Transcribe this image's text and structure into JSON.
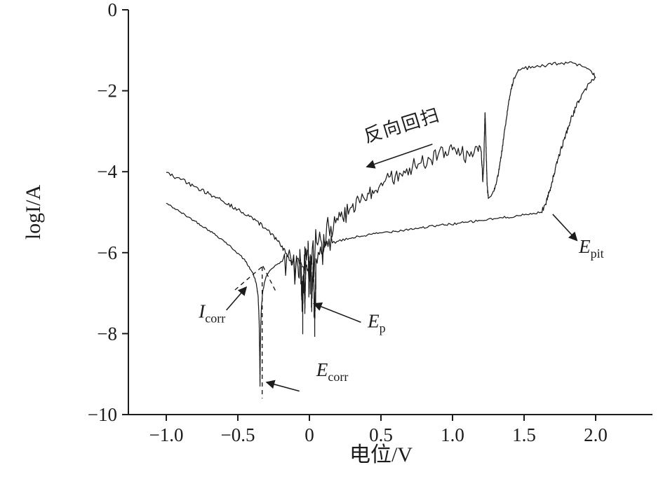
{
  "figure": {
    "background": "#ffffff",
    "ink_color": "#1c1c1c"
  },
  "chart_data": {
    "type": "line",
    "title": "",
    "xlabel": "电位/V",
    "ylabel": "logI/A",
    "xlim": [
      -1.2647,
      2.3971
    ],
    "ylim": [
      -10,
      0
    ],
    "grid": false,
    "legend": null,
    "x_ticks": [
      {
        "v": -1.0,
        "label": "−1.0"
      },
      {
        "v": -0.5,
        "label": "−0.5"
      },
      {
        "v": 0,
        "label": "0"
      },
      {
        "v": 0.5,
        "label": "0.5"
      },
      {
        "v": 1.0,
        "label": "1.0"
      },
      {
        "v": 1.5,
        "label": "1.5"
      },
      {
        "v": 2.0,
        "label": "2.0"
      }
    ],
    "y_ticks": [
      {
        "v": 0,
        "label": "0"
      },
      {
        "v": -2,
        "label": "−2"
      },
      {
        "v": -4,
        "label": "−4"
      },
      {
        "v": -6,
        "label": "−6"
      },
      {
        "v": -8,
        "label": "−8"
      },
      {
        "v": -10,
        "label": "−10"
      }
    ],
    "series": [
      {
        "name": "forward-scan-curve",
        "segments": [
          {
            "noise": 0.025,
            "points": [
              [
                -1.0,
                -4.78
              ],
              [
                -0.9,
                -5.0
              ],
              [
                -0.8,
                -5.22
              ],
              [
                -0.7,
                -5.45
              ],
              [
                -0.6,
                -5.7
              ],
              [
                -0.52,
                -5.95
              ],
              [
                -0.46,
                -6.15
              ],
              [
                -0.42,
                -6.35
              ],
              [
                -0.39,
                -6.55
              ],
              [
                -0.37,
                -6.78
              ],
              [
                -0.358,
                -7.1
              ],
              [
                -0.351,
                -7.7
              ],
              [
                -0.347,
                -8.6
              ],
              [
                -0.345,
                -9.3
              ]
            ]
          },
          {
            "noise": 0.02,
            "points": [
              [
                -0.345,
                -9.3
              ],
              [
                -0.343,
                -8.4
              ],
              [
                -0.34,
                -7.8
              ],
              [
                -0.335,
                -7.35
              ],
              [
                -0.327,
                -7.0
              ],
              [
                -0.315,
                -6.75
              ],
              [
                -0.3,
                -6.58
              ],
              [
                -0.27,
                -6.42
              ],
              [
                -0.23,
                -6.3
              ],
              [
                -0.19,
                -6.22
              ]
            ]
          },
          {
            "noise": 0.2,
            "spikes": {
              "p": 0.05,
              "mag": 0.8
            },
            "points": [
              [
                -0.19,
                -6.22
              ],
              [
                -0.15,
                -6.1
              ],
              [
                -0.11,
                -6.15
              ],
              [
                -0.07,
                -6.28
              ],
              [
                -0.04,
                -6.35
              ],
              [
                -0.031,
                -7.3
              ],
              [
                -0.025,
                -6.3
              ],
              [
                -0.012,
                -6.45
              ],
              [
                0.0,
                -6.55
              ],
              [
                0.01,
                -6.3
              ],
              [
                0.018,
                -7.0
              ],
              [
                0.028,
                -6.2
              ],
              [
                0.037,
                -7.75
              ],
              [
                0.046,
                -6.15
              ],
              [
                0.07,
                -6.05
              ],
              [
                0.1,
                -5.95
              ],
              [
                0.13,
                -5.85
              ],
              [
                0.16,
                -5.76
              ]
            ]
          },
          {
            "noise": 0.03,
            "points": [
              [
                0.16,
                -5.76
              ],
              [
                0.3,
                -5.63
              ],
              [
                0.5,
                -5.51
              ],
              [
                0.7,
                -5.42
              ],
              [
                0.9,
                -5.33
              ],
              [
                1.1,
                -5.25
              ],
              [
                1.3,
                -5.16
              ],
              [
                1.5,
                -5.07
              ],
              [
                1.62,
                -5.0
              ]
            ]
          },
          {
            "noise": 0.06,
            "points": [
              [
                1.62,
                -5.0
              ],
              [
                1.65,
                -4.8
              ],
              [
                1.68,
                -4.45
              ],
              [
                1.71,
                -4.05
              ],
              [
                1.74,
                -3.65
              ],
              [
                1.78,
                -3.2
              ],
              [
                1.82,
                -2.78
              ],
              [
                1.86,
                -2.42
              ],
              [
                1.9,
                -2.12
              ],
              [
                1.94,
                -1.9
              ],
              [
                1.98,
                -1.73
              ],
              [
                2.0,
                -1.66
              ]
            ]
          }
        ]
      },
      {
        "name": "reverse-scan-curve",
        "segments": [
          {
            "noise": 0.045,
            "points": [
              [
                2.0,
                -1.66
              ],
              [
                1.97,
                -1.52
              ],
              [
                1.93,
                -1.42
              ],
              [
                1.88,
                -1.35
              ],
              [
                1.81,
                -1.31
              ],
              [
                1.74,
                -1.33
              ],
              [
                1.66,
                -1.37
              ],
              [
                1.58,
                -1.41
              ],
              [
                1.5,
                -1.45
              ],
              [
                1.46,
                -1.48
              ]
            ]
          },
          {
            "noise": 0.05,
            "points": [
              [
                1.46,
                -1.48
              ],
              [
                1.43,
                -1.68
              ],
              [
                1.41,
                -1.95
              ],
              [
                1.39,
                -2.35
              ],
              [
                1.37,
                -2.85
              ],
              [
                1.35,
                -3.35
              ],
              [
                1.33,
                -3.85
              ],
              [
                1.31,
                -4.22
              ],
              [
                1.29,
                -4.48
              ],
              [
                1.27,
                -4.6
              ],
              [
                1.25,
                -4.66
              ]
            ]
          },
          {
            "noise": 0.07,
            "points": [
              [
                1.25,
                -4.66
              ],
              [
                1.242,
                -4.35
              ],
              [
                1.235,
                -3.5
              ],
              [
                1.23,
                -2.8
              ],
              [
                1.227,
                -2.55
              ],
              [
                1.223,
                -3.1
              ],
              [
                1.218,
                -3.9
              ],
              [
                1.212,
                -4.25
              ],
              [
                1.206,
                -3.85
              ],
              [
                1.2,
                -3.5
              ],
              [
                1.19,
                -3.38
              ],
              [
                1.18,
                -3.5
              ]
            ]
          },
          {
            "noise": 0.2,
            "spikes": {
              "p": 0.03,
              "mag": 0.45
            },
            "points": [
              [
                1.18,
                -3.5
              ],
              [
                1.12,
                -3.62
              ],
              [
                1.06,
                -3.55
              ],
              [
                1.0,
                -3.46
              ],
              [
                0.95,
                -3.5
              ],
              [
                0.9,
                -3.58
              ],
              [
                0.84,
                -3.68
              ],
              [
                0.78,
                -3.78
              ],
              [
                0.72,
                -3.88
              ],
              [
                0.66,
                -3.98
              ],
              [
                0.6,
                -4.1
              ],
              [
                0.52,
                -4.26
              ],
              [
                0.44,
                -4.46
              ],
              [
                0.36,
                -4.7
              ],
              [
                0.28,
                -4.95
              ],
              [
                0.2,
                -5.2
              ]
            ]
          },
          {
            "noise": 0.36,
            "spikes": {
              "p": 0.05,
              "mag": 0.9
            },
            "points": [
              [
                0.2,
                -5.2
              ],
              [
                0.15,
                -5.35
              ],
              [
                0.1,
                -5.55
              ],
              [
                0.05,
                -5.75
              ],
              [
                0.02,
                -5.9
              ],
              [
                0.0,
                -6.6
              ],
              [
                -0.01,
                -5.95
              ],
              [
                -0.03,
                -6.1
              ],
              [
                -0.05,
                -7.2
              ],
              [
                -0.062,
                -6.2
              ],
              [
                -0.08,
                -6.35
              ],
              [
                -0.12,
                -6.3
              ]
            ]
          },
          {
            "noise": 0.05,
            "points": [
              [
                -0.12,
                -6.3
              ],
              [
                -0.16,
                -6.02
              ],
              [
                -0.22,
                -5.72
              ],
              [
                -0.3,
                -5.42
              ],
              [
                -0.4,
                -5.13
              ],
              [
                -0.5,
                -4.93
              ],
              [
                -0.6,
                -4.74
              ],
              [
                -0.7,
                -4.55
              ],
              [
                -0.8,
                -4.37
              ],
              [
                -0.9,
                -4.19
              ],
              [
                -1.0,
                -4.02
              ]
            ]
          }
        ]
      }
    ],
    "dashed_lines": [
      {
        "name": "ecorr-dashed-line",
        "points": [
          [
            -0.33,
            -6.35
          ],
          [
            -0.33,
            -9.6
          ]
        ]
      },
      {
        "name": "tafel-left-dashed",
        "points": [
          [
            -0.52,
            -6.92
          ],
          [
            -0.325,
            -6.33
          ]
        ]
      },
      {
        "name": "tafel-right-dashed",
        "points": [
          [
            -0.325,
            -6.33
          ],
          [
            -0.233,
            -6.97
          ]
        ]
      }
    ],
    "annotations": [
      {
        "name": "reverse-scan-label",
        "text": "反向回扫",
        "x": 0.66,
        "y": -3.0,
        "rotate": -17,
        "size": 26,
        "letter_spacing": 2
      },
      {
        "name": "icorr-label",
        "text": "I_corr",
        "x": -0.68,
        "y": -7.6
      },
      {
        "name": "ecorr-label",
        "text": "E_corr",
        "x": 0.16,
        "y": -9.05
      },
      {
        "name": "ep-label",
        "text": "E_p",
        "x": 0.47,
        "y": -7.85
      },
      {
        "name": "epit-label",
        "text": "E_pit",
        "x": 1.97,
        "y": -6.0
      }
    ],
    "arrows": [
      {
        "name": "reverse-scan-arrow",
        "from": [
          0.86,
          -3.32
        ],
        "to": [
          0.4,
          -3.88
        ]
      },
      {
        "name": "icorr-arrow",
        "from": [
          -0.58,
          -7.42
        ],
        "to": [
          -0.44,
          -6.85
        ]
      },
      {
        "name": "ecorr-arrow",
        "from": [
          -0.07,
          -9.42
        ],
        "to": [
          -0.3,
          -9.2
        ]
      },
      {
        "name": "ep-arrow",
        "from": [
          0.36,
          -7.72
        ],
        "to": [
          0.03,
          -7.26
        ]
      },
      {
        "name": "epit-arrow",
        "from": [
          1.7,
          -5.05
        ],
        "to": [
          1.87,
          -5.7
        ]
      }
    ]
  }
}
